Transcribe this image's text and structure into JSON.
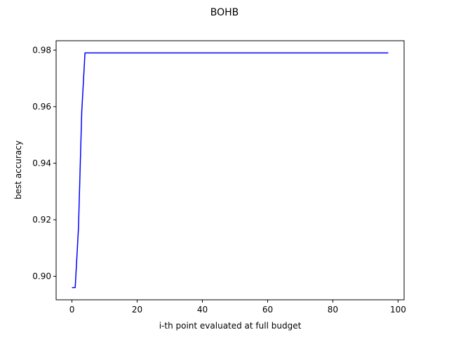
{
  "chart_data": {
    "type": "line",
    "title": "BOHB",
    "xlabel": "i-th point evaluated at full budget",
    "ylabel": "best accuracy",
    "xlim": [
      -4.85,
      101.85
    ],
    "ylim": [
      0.8917,
      0.9833
    ],
    "xticks": [
      0,
      20,
      40,
      60,
      80,
      100
    ],
    "xtick_labels": [
      "0",
      "20",
      "40",
      "60",
      "80",
      "100"
    ],
    "yticks": [
      0.9,
      0.92,
      0.94,
      0.96,
      0.98
    ],
    "ytick_labels": [
      "0.90",
      "0.92",
      "0.94",
      "0.96",
      "0.98"
    ],
    "grid": false,
    "series": [
      {
        "color": "#0000ff",
        "x": [
          0,
          1,
          2,
          3,
          4,
          5,
          97
        ],
        "y": [
          0.896,
          0.896,
          0.917,
          0.958,
          0.979,
          0.979,
          0.979
        ]
      }
    ]
  }
}
